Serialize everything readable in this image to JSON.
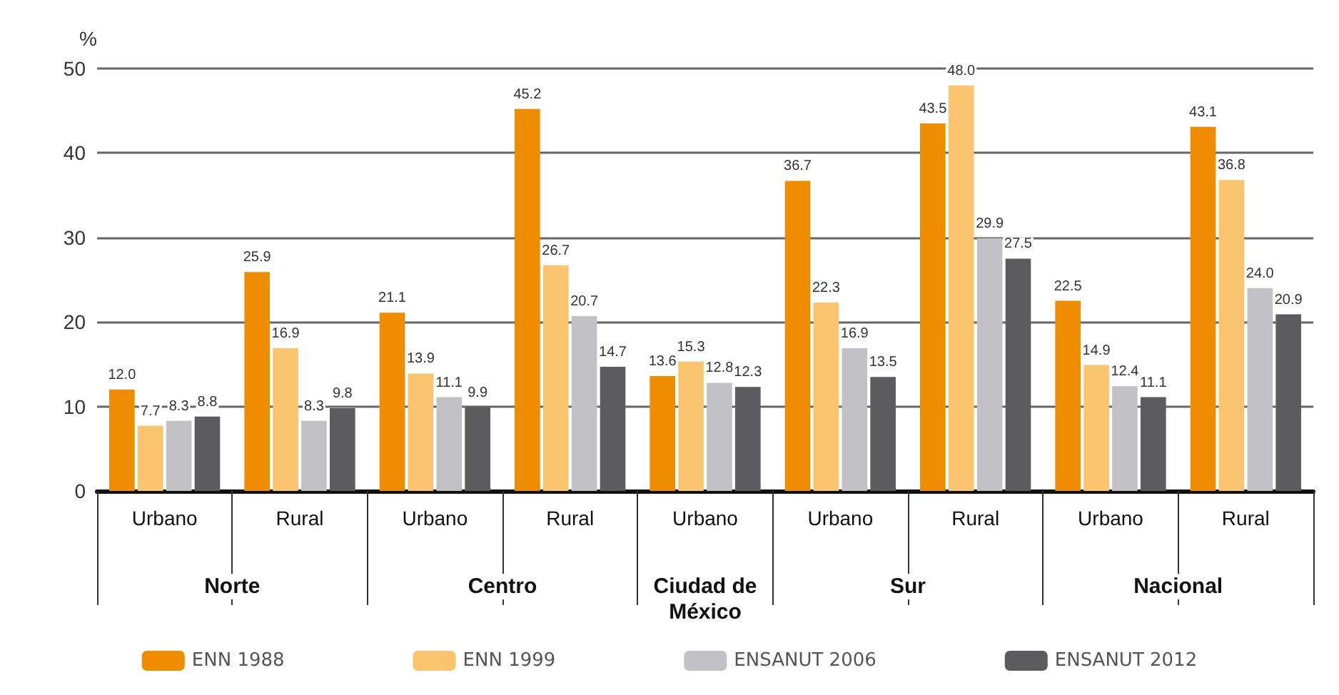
{
  "chart_data": {
    "type": "bar",
    "ylabel": "%",
    "categories": [
      "Urbano",
      "Rural",
      "Urbano",
      "Rural",
      "Urbano",
      "Urbano",
      "Rural",
      "Urbano",
      "Rural"
    ],
    "series": [
      {
        "name": "ENN 1988",
        "color": "#f08c00",
        "values": [
          12.0,
          25.9,
          21.1,
          45.2,
          13.6,
          36.7,
          43.5,
          22.5,
          43.1
        ],
        "value_labels": [
          "12.0",
          "25.9",
          "21.1",
          "45.2",
          "13.6",
          "36.7",
          "43.5",
          "22.5",
          "43.1"
        ]
      },
      {
        "name": "ENN 1999",
        "color": "#fbc46e",
        "values": [
          7.7,
          16.9,
          13.9,
          26.7,
          15.3,
          22.3,
          48.0,
          14.9,
          36.8
        ],
        "value_labels": [
          "7.7",
          "16.9",
          "13.9",
          "26.7",
          "15.3",
          "22.3",
          "48.0",
          "14.9",
          "36.8"
        ]
      },
      {
        "name": "ENSANUT 2006",
        "color": "#c2c2c6",
        "values": [
          8.3,
          8.3,
          11.1,
          20.7,
          12.8,
          16.9,
          29.9,
          12.4,
          24.0
        ],
        "value_labels": [
          "8.3",
          "8.3",
          "11.1",
          "20.7",
          "12.8",
          "16.9",
          "29.9",
          "12.4",
          "24.0"
        ]
      },
      {
        "name": "ENSANUT 2012",
        "color": "#5c5c5e",
        "values": [
          8.8,
          9.8,
          9.9,
          14.7,
          12.3,
          13.5,
          27.5,
          11.1,
          20.9
        ],
        "value_labels": [
          "8.8",
          "9.8",
          "9.9",
          "14.7",
          "12.3",
          "13.5",
          "27.5",
          "11.1",
          "20.9"
        ]
      }
    ],
    "ylim": [
      0,
      50
    ],
    "yticks": [
      0,
      10,
      20,
      30,
      40,
      50
    ],
    "grid": "y",
    "legend": "bottom",
    "annotations": [
      "Norte",
      "Centro",
      "Ciudad de\nMéxico",
      "Sur",
      "Nacional"
    ]
  }
}
